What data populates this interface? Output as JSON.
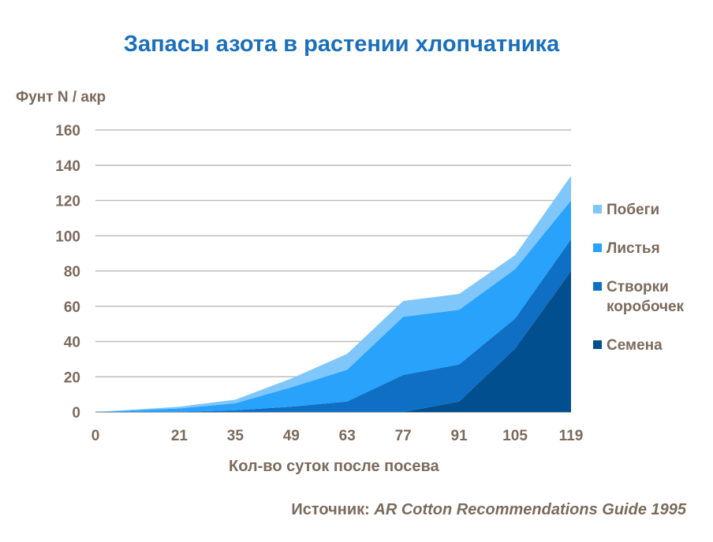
{
  "title": "Запасы азота в растении хлопчатника",
  "source": {
    "prefix": "Источник: ",
    "text": "AR Cotton Recommendations Guide 1995"
  },
  "chart_data": {
    "type": "area",
    "stacked": true,
    "ylabel": "Фунт N / акр",
    "xlabel": "Кол-во суток после посева",
    "x": [
      0,
      21,
      35,
      49,
      63,
      77,
      91,
      105,
      119
    ],
    "ylim": [
      0,
      160
    ],
    "yticks": [
      0,
      20,
      40,
      60,
      80,
      100,
      120,
      140,
      160
    ],
    "grid": true,
    "legend_position": "right",
    "series": [
      {
        "name": "Семена",
        "color": "#024f8f",
        "values": [
          0,
          0,
          0,
          0,
          0,
          0,
          6,
          36,
          80
        ]
      },
      {
        "name": "Створки коробочек",
        "color": "#0e6fc4",
        "values": [
          0,
          0,
          1,
          3,
          6,
          21,
          21,
          17,
          18
        ]
      },
      {
        "name": "Листья",
        "color": "#28a2fb",
        "values": [
          0,
          2,
          4,
          11,
          18,
          33,
          31,
          28,
          22
        ]
      },
      {
        "name": "Побеги",
        "color": "#7fc6fa",
        "values": [
          0,
          1,
          2,
          5,
          9,
          9,
          9,
          8,
          14
        ]
      }
    ]
  }
}
